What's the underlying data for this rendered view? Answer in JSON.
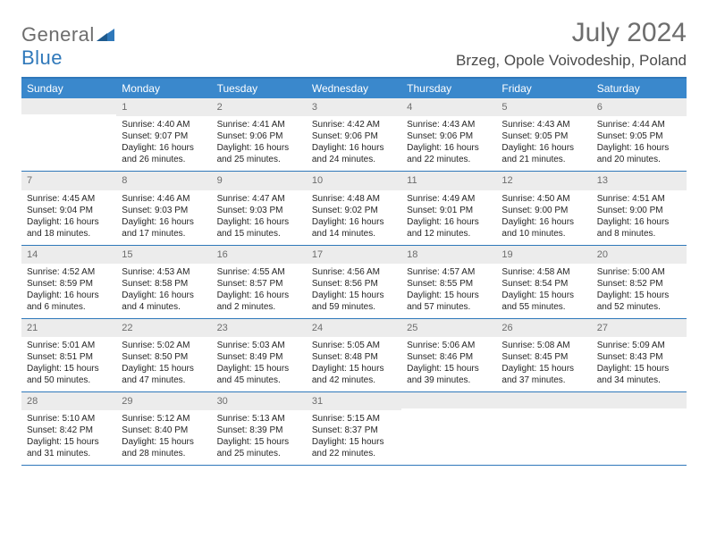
{
  "logo": {
    "part1": "General",
    "part2": "Blue"
  },
  "title": "July 2024",
  "location": "Brzeg, Opole Voivodeship, Poland",
  "colors": {
    "header_bg": "#3a88cc",
    "border": "#2f78ba",
    "date_bg": "#ececec",
    "text": "#262626",
    "muted": "#6d6d6d",
    "white": "#ffffff"
  },
  "day_headers": [
    "Sunday",
    "Monday",
    "Tuesday",
    "Wednesday",
    "Thursday",
    "Friday",
    "Saturday"
  ],
  "weeks": [
    [
      {
        "date": "",
        "sunrise": "",
        "sunset": "",
        "daylight": ""
      },
      {
        "date": "1",
        "sunrise": "4:40 AM",
        "sunset": "9:07 PM",
        "daylight": "16 hours and 26 minutes."
      },
      {
        "date": "2",
        "sunrise": "4:41 AM",
        "sunset": "9:06 PM",
        "daylight": "16 hours and 25 minutes."
      },
      {
        "date": "3",
        "sunrise": "4:42 AM",
        "sunset": "9:06 PM",
        "daylight": "16 hours and 24 minutes."
      },
      {
        "date": "4",
        "sunrise": "4:43 AM",
        "sunset": "9:06 PM",
        "daylight": "16 hours and 22 minutes."
      },
      {
        "date": "5",
        "sunrise": "4:43 AM",
        "sunset": "9:05 PM",
        "daylight": "16 hours and 21 minutes."
      },
      {
        "date": "6",
        "sunrise": "4:44 AM",
        "sunset": "9:05 PM",
        "daylight": "16 hours and 20 minutes."
      }
    ],
    [
      {
        "date": "7",
        "sunrise": "4:45 AM",
        "sunset": "9:04 PM",
        "daylight": "16 hours and 18 minutes."
      },
      {
        "date": "8",
        "sunrise": "4:46 AM",
        "sunset": "9:03 PM",
        "daylight": "16 hours and 17 minutes."
      },
      {
        "date": "9",
        "sunrise": "4:47 AM",
        "sunset": "9:03 PM",
        "daylight": "16 hours and 15 minutes."
      },
      {
        "date": "10",
        "sunrise": "4:48 AM",
        "sunset": "9:02 PM",
        "daylight": "16 hours and 14 minutes."
      },
      {
        "date": "11",
        "sunrise": "4:49 AM",
        "sunset": "9:01 PM",
        "daylight": "16 hours and 12 minutes."
      },
      {
        "date": "12",
        "sunrise": "4:50 AM",
        "sunset": "9:00 PM",
        "daylight": "16 hours and 10 minutes."
      },
      {
        "date": "13",
        "sunrise": "4:51 AM",
        "sunset": "9:00 PM",
        "daylight": "16 hours and 8 minutes."
      }
    ],
    [
      {
        "date": "14",
        "sunrise": "4:52 AM",
        "sunset": "8:59 PM",
        "daylight": "16 hours and 6 minutes."
      },
      {
        "date": "15",
        "sunrise": "4:53 AM",
        "sunset": "8:58 PM",
        "daylight": "16 hours and 4 minutes."
      },
      {
        "date": "16",
        "sunrise": "4:55 AM",
        "sunset": "8:57 PM",
        "daylight": "16 hours and 2 minutes."
      },
      {
        "date": "17",
        "sunrise": "4:56 AM",
        "sunset": "8:56 PM",
        "daylight": "15 hours and 59 minutes."
      },
      {
        "date": "18",
        "sunrise": "4:57 AM",
        "sunset": "8:55 PM",
        "daylight": "15 hours and 57 minutes."
      },
      {
        "date": "19",
        "sunrise": "4:58 AM",
        "sunset": "8:54 PM",
        "daylight": "15 hours and 55 minutes."
      },
      {
        "date": "20",
        "sunrise": "5:00 AM",
        "sunset": "8:52 PM",
        "daylight": "15 hours and 52 minutes."
      }
    ],
    [
      {
        "date": "21",
        "sunrise": "5:01 AM",
        "sunset": "8:51 PM",
        "daylight": "15 hours and 50 minutes."
      },
      {
        "date": "22",
        "sunrise": "5:02 AM",
        "sunset": "8:50 PM",
        "daylight": "15 hours and 47 minutes."
      },
      {
        "date": "23",
        "sunrise": "5:03 AM",
        "sunset": "8:49 PM",
        "daylight": "15 hours and 45 minutes."
      },
      {
        "date": "24",
        "sunrise": "5:05 AM",
        "sunset": "8:48 PM",
        "daylight": "15 hours and 42 minutes."
      },
      {
        "date": "25",
        "sunrise": "5:06 AM",
        "sunset": "8:46 PM",
        "daylight": "15 hours and 39 minutes."
      },
      {
        "date": "26",
        "sunrise": "5:08 AM",
        "sunset": "8:45 PM",
        "daylight": "15 hours and 37 minutes."
      },
      {
        "date": "27",
        "sunrise": "5:09 AM",
        "sunset": "8:43 PM",
        "daylight": "15 hours and 34 minutes."
      }
    ],
    [
      {
        "date": "28",
        "sunrise": "5:10 AM",
        "sunset": "8:42 PM",
        "daylight": "15 hours and 31 minutes."
      },
      {
        "date": "29",
        "sunrise": "5:12 AM",
        "sunset": "8:40 PM",
        "daylight": "15 hours and 28 minutes."
      },
      {
        "date": "30",
        "sunrise": "5:13 AM",
        "sunset": "8:39 PM",
        "daylight": "15 hours and 25 minutes."
      },
      {
        "date": "31",
        "sunrise": "5:15 AM",
        "sunset": "8:37 PM",
        "daylight": "15 hours and 22 minutes."
      },
      {
        "date": "",
        "sunrise": "",
        "sunset": "",
        "daylight": ""
      },
      {
        "date": "",
        "sunrise": "",
        "sunset": "",
        "daylight": ""
      },
      {
        "date": "",
        "sunrise": "",
        "sunset": "",
        "daylight": ""
      }
    ]
  ],
  "labels": {
    "sunrise": "Sunrise: ",
    "sunset": "Sunset: ",
    "daylight": "Daylight: "
  }
}
